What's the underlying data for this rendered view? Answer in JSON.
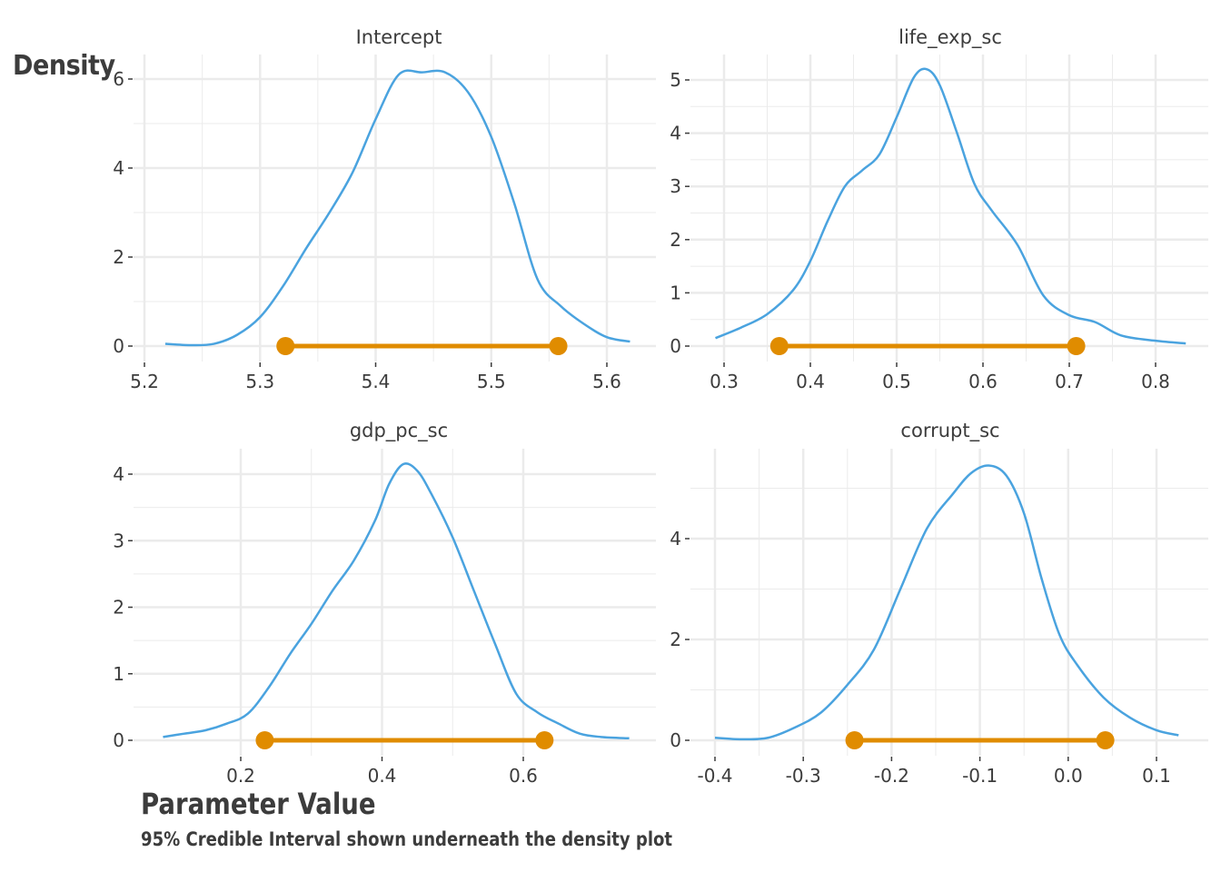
{
  "ylabel": "Density",
  "xlabel": "Parameter Value",
  "caption": "95% Credible Interval shown underneath the density plot",
  "colors": {
    "density_line": "#4aa3df",
    "interval": "#e08c00",
    "grid": "#ebebeb",
    "text": "#3c3c3c"
  },
  "chart_data": [
    {
      "type": "line",
      "title": "Intercept",
      "xlim": [
        5.2,
        5.62
      ],
      "ylim": [
        0,
        6.2
      ],
      "xticks": [
        "5.2",
        "5.3",
        "5.4",
        "5.5",
        "5.6"
      ],
      "yticks": [
        "0",
        "2",
        "4",
        "6"
      ],
      "x": [
        5.218,
        5.24,
        5.26,
        5.28,
        5.3,
        5.32,
        5.34,
        5.36,
        5.38,
        5.4,
        5.42,
        5.44,
        5.46,
        5.48,
        5.5,
        5.52,
        5.54,
        5.56,
        5.58,
        5.6,
        5.62
      ],
      "y": [
        0.05,
        0.02,
        0.05,
        0.25,
        0.65,
        1.35,
        2.2,
        3.0,
        3.9,
        5.1,
        6.1,
        6.15,
        6.15,
        5.7,
        4.7,
        3.2,
        1.5,
        0.9,
        0.5,
        0.2,
        0.1
      ],
      "interval": [
        5.322,
        5.558
      ]
    },
    {
      "type": "line",
      "title": "life_exp_sc",
      "xlim": [
        0.29,
        0.835
      ],
      "ylim": [
        0,
        5.2
      ],
      "xticks": [
        "0.3",
        "0.4",
        "0.5",
        "0.6",
        "0.7",
        "0.8"
      ],
      "yticks": [
        "0",
        "1",
        "2",
        "3",
        "4",
        "5"
      ],
      "x": [
        0.29,
        0.32,
        0.35,
        0.38,
        0.4,
        0.42,
        0.44,
        0.46,
        0.48,
        0.5,
        0.52,
        0.535,
        0.55,
        0.57,
        0.59,
        0.61,
        0.64,
        0.67,
        0.7,
        0.73,
        0.76,
        0.8,
        0.835
      ],
      "y": [
        0.15,
        0.35,
        0.6,
        1.05,
        1.6,
        2.35,
        3.0,
        3.3,
        3.6,
        4.3,
        5.05,
        5.2,
        4.9,
        4.0,
        3.05,
        2.55,
        1.9,
        0.95,
        0.58,
        0.45,
        0.2,
        0.1,
        0.05
      ],
      "interval": [
        0.364,
        0.708
      ]
    },
    {
      "type": "line",
      "title": "gdp_pc_sc",
      "xlim": [
        0.09,
        0.75
      ],
      "ylim": [
        0,
        4.2
      ],
      "xticks": [
        "0.2",
        "0.4",
        "0.6"
      ],
      "yticks": [
        "0",
        "1",
        "2",
        "3",
        "4"
      ],
      "x": [
        0.09,
        0.12,
        0.15,
        0.18,
        0.21,
        0.24,
        0.27,
        0.3,
        0.33,
        0.36,
        0.39,
        0.41,
        0.43,
        0.45,
        0.47,
        0.5,
        0.53,
        0.56,
        0.59,
        0.62,
        0.65,
        0.68,
        0.71,
        0.75
      ],
      "y": [
        0.05,
        0.1,
        0.15,
        0.25,
        0.4,
        0.8,
        1.3,
        1.75,
        2.25,
        2.7,
        3.3,
        3.85,
        4.15,
        4.05,
        3.7,
        3.05,
        2.25,
        1.45,
        0.7,
        0.42,
        0.25,
        0.1,
        0.05,
        0.03
      ],
      "interval": [
        0.234,
        0.63
      ]
    },
    {
      "type": "line",
      "title": "corrupt_sc",
      "xlim": [
        -0.4,
        0.125
      ],
      "ylim": [
        0,
        5.5
      ],
      "xticks": [
        "-0.4",
        "-0.3",
        "-0.2",
        "-0.1",
        "0.0",
        "0.1"
      ],
      "yticks": [
        "0",
        "2",
        "4"
      ],
      "x": [
        -0.4,
        -0.37,
        -0.34,
        -0.31,
        -0.28,
        -0.25,
        -0.22,
        -0.19,
        -0.16,
        -0.13,
        -0.11,
        -0.09,
        -0.07,
        -0.05,
        -0.03,
        -0.01,
        0.01,
        0.04,
        0.07,
        0.1,
        0.125
      ],
      "y": [
        0.05,
        0.02,
        0.05,
        0.25,
        0.55,
        1.1,
        1.8,
        3.0,
        4.2,
        4.9,
        5.3,
        5.45,
        5.25,
        4.5,
        3.2,
        2.1,
        1.5,
        0.85,
        0.45,
        0.2,
        0.1
      ],
      "interval": [
        -0.242,
        0.042
      ]
    }
  ]
}
